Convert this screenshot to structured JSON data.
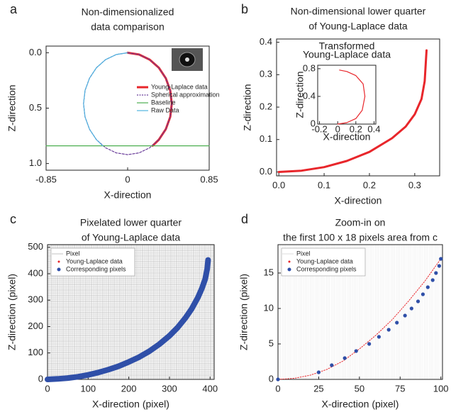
{
  "chart_data": [
    {
      "panel": "a",
      "type": "line",
      "title": [
        "Non-dimensionalized",
        "data comparison"
      ],
      "xlabel": "X-direction",
      "ylabel": "Z-direction",
      "xlim": [
        -0.85,
        0.85
      ],
      "xticks": [
        -0.85,
        0,
        0.85
      ],
      "ylim": [
        -0.06,
        1.06
      ],
      "invert_y": true,
      "yticks": [
        {
          "value": 0,
          "label": "0.0"
        },
        0.5,
        {
          "value": 1,
          "label": "1.0"
        }
      ],
      "legend": "right",
      "series": [
        {
          "name": "Young-Laplace data",
          "color": "#e8262b",
          "style": "thick",
          "x": [
            0,
            0.119,
            0.23,
            0.325,
            0.398,
            0.444,
            0.46,
            0.444,
            0.398,
            0.325,
            0.26
          ],
          "values": [
            0,
            0.016,
            0.062,
            0.135,
            0.23,
            0.341,
            0.46,
            0.579,
            0.69,
            0.785,
            0.84
          ]
        },
        {
          "name": "Spherical approximation",
          "color": "#6a3d9a",
          "style": "dashed",
          "x": [
            0,
            0.119,
            0.23,
            0.325,
            0.398,
            0.444,
            0.46,
            0.444,
            0.398,
            0.325,
            0.23,
            0.119,
            0,
            -0.119,
            -0.23,
            -0.325,
            -0.398,
            -0.444,
            -0.46,
            -0.444,
            -0.398,
            -0.325,
            -0.23,
            -0.119,
            0
          ],
          "values": [
            0,
            0.016,
            0.062,
            0.135,
            0.23,
            0.341,
            0.46,
            0.579,
            0.69,
            0.785,
            0.858,
            0.904,
            0.92,
            0.904,
            0.858,
            0.785,
            0.69,
            0.579,
            0.46,
            0.341,
            0.23,
            0.135,
            0.062,
            0.016,
            0
          ]
        },
        {
          "name": "Baseline",
          "color": "#4caf50",
          "style": "solid",
          "x": [
            -0.85,
            0.85
          ],
          "values": [
            0.84,
            0.84
          ]
        },
        {
          "name": "Raw Data",
          "color": "#4fb3e0",
          "style": "solid",
          "x": [
            0,
            -0.119,
            -0.23,
            -0.325,
            -0.398,
            -0.444,
            -0.46,
            -0.444,
            -0.398,
            -0.325,
            -0.26
          ],
          "values": [
            0,
            0.016,
            0.062,
            0.135,
            0.23,
            0.341,
            0.46,
            0.579,
            0.69,
            0.785,
            0.84
          ]
        }
      ]
    },
    {
      "panel": "b",
      "type": "line",
      "title": [
        "Non-dimensional lower quarter",
        "of Young-Laplace data"
      ],
      "xlabel": "X-direction",
      "ylabel": "Z-direction",
      "xlim": [
        -0.005,
        0.355
      ],
      "xticks": [
        {
          "value": 0,
          "label": "0.0"
        },
        0.1,
        0.2,
        0.3
      ],
      "ylim": [
        -0.012,
        0.41
      ],
      "yticks": [
        {
          "value": 0,
          "label": "0.0"
        },
        0.1,
        0.2,
        0.3,
        0.4
      ],
      "series": [
        {
          "name": "Young-Laplace data",
          "color": "#e8262b",
          "style": "thick",
          "x": [
            0,
            0.05,
            0.1,
            0.15,
            0.2,
            0.25,
            0.28,
            0.3,
            0.315,
            0.322,
            0.326
          ],
          "values": [
            0,
            0.004,
            0.015,
            0.034,
            0.062,
            0.104,
            0.14,
            0.178,
            0.225,
            0.28,
            0.375
          ]
        }
      ],
      "inset": {
        "type": "line",
        "title": [
          "Transformed",
          "Young-Laplace data"
        ],
        "xlabel": "X-direction",
        "ylabel": "Z-direction",
        "xlim": [
          -0.22,
          0.42
        ],
        "xticks": [
          -0.2,
          0,
          0.2,
          0.4
        ],
        "ylim": [
          0,
          0.85
        ],
        "yticks": [
          0,
          0.4,
          0.8
        ],
        "series": [
          {
            "name": "Transformed Young-Laplace data",
            "color": "#e8262b",
            "style": "solid",
            "x": [
              0,
              0.1,
              0.2,
              0.27,
              0.3,
              0.28,
              0.2,
              0.1,
              0.02
            ],
            "values": [
              0,
              0.02,
              0.08,
              0.2,
              0.4,
              0.58,
              0.7,
              0.76,
              0.78
            ]
          }
        ]
      }
    },
    {
      "panel": "c",
      "type": "line",
      "title": [
        "Pixelated lower quarter",
        "of Young-Laplace data"
      ],
      "xlabel": "X-direction (pixel)",
      "ylabel": "Z-direction (pixel)",
      "xlim": [
        0,
        410
      ],
      "xticks": [
        0,
        100,
        200,
        300,
        400
      ],
      "ylim": [
        0,
        510
      ],
      "yticks": [
        0,
        100,
        200,
        300,
        400,
        500
      ],
      "legend": "upper left",
      "pixel_grid": {
        "name": "Pixel",
        "color": "#9a9a9a",
        "step": 1.6
      },
      "series": [
        {
          "name": "Young-Laplace data",
          "color": "#e8262b",
          "style": "dotted",
          "marker": "dot",
          "x": [
            0,
            25,
            50,
            75,
            100,
            125,
            150,
            175,
            200,
            225,
            250,
            275,
            300,
            320,
            340,
            355,
            370,
            380,
            388,
            393,
            395
          ],
          "values": [
            0,
            2,
            5,
            10,
            17,
            26,
            37,
            50,
            66,
            84,
            106,
            133,
            165,
            196,
            234,
            268,
            310,
            345,
            380,
            420,
            452
          ]
        },
        {
          "name": "Corresponding pixels",
          "color": "#2f4fa8",
          "style": "band",
          "marker": "dot",
          "x": [
            0,
            25,
            50,
            75,
            100,
            125,
            150,
            175,
            200,
            225,
            250,
            275,
            300,
            320,
            340,
            355,
            370,
            380,
            388,
            393,
            395
          ],
          "values": [
            0,
            2,
            5,
            10,
            17,
            26,
            37,
            50,
            66,
            84,
            106,
            133,
            165,
            196,
            234,
            268,
            310,
            345,
            380,
            420,
            452
          ]
        }
      ]
    },
    {
      "panel": "d",
      "type": "line",
      "title": [
        "Zoom-in on",
        "the first 100 x 18 pixels area from c"
      ],
      "xlabel": "X-direction (pixel)",
      "ylabel": "Z-direction (pixel)",
      "xlim": [
        0,
        101
      ],
      "xticks": [
        0,
        25,
        50,
        75,
        100
      ],
      "ylim": [
        0,
        19
      ],
      "yticks": [
        0,
        5,
        10,
        15
      ],
      "legend": "upper left",
      "pixel_grid": {
        "name": "Pixel",
        "color": "#c8c8c8",
        "step": 2.3
      },
      "series": [
        {
          "name": "Young-Laplace data",
          "color": "#e8262b",
          "style": "dotted",
          "marker": "dot",
          "x": [
            0,
            10,
            20,
            30,
            40,
            50,
            60,
            70,
            80,
            90,
            100
          ],
          "values": [
            0,
            0.15,
            0.6,
            1.4,
            2.6,
            4.3,
            6.2,
            8.4,
            11,
            13.8,
            17
          ]
        },
        {
          "name": "Corresponding pixels",
          "color": "#2f4fa8",
          "style": "points",
          "marker": "dot",
          "x": [
            0,
            25,
            33,
            41,
            48,
            56,
            62,
            68,
            73,
            78,
            82,
            86,
            89,
            92,
            95,
            97,
            99,
            100
          ],
          "values": [
            0,
            1,
            2,
            3,
            4,
            5,
            6,
            7,
            8,
            9,
            10,
            11,
            12,
            13,
            14,
            15,
            16,
            17
          ]
        }
      ]
    }
  ]
}
